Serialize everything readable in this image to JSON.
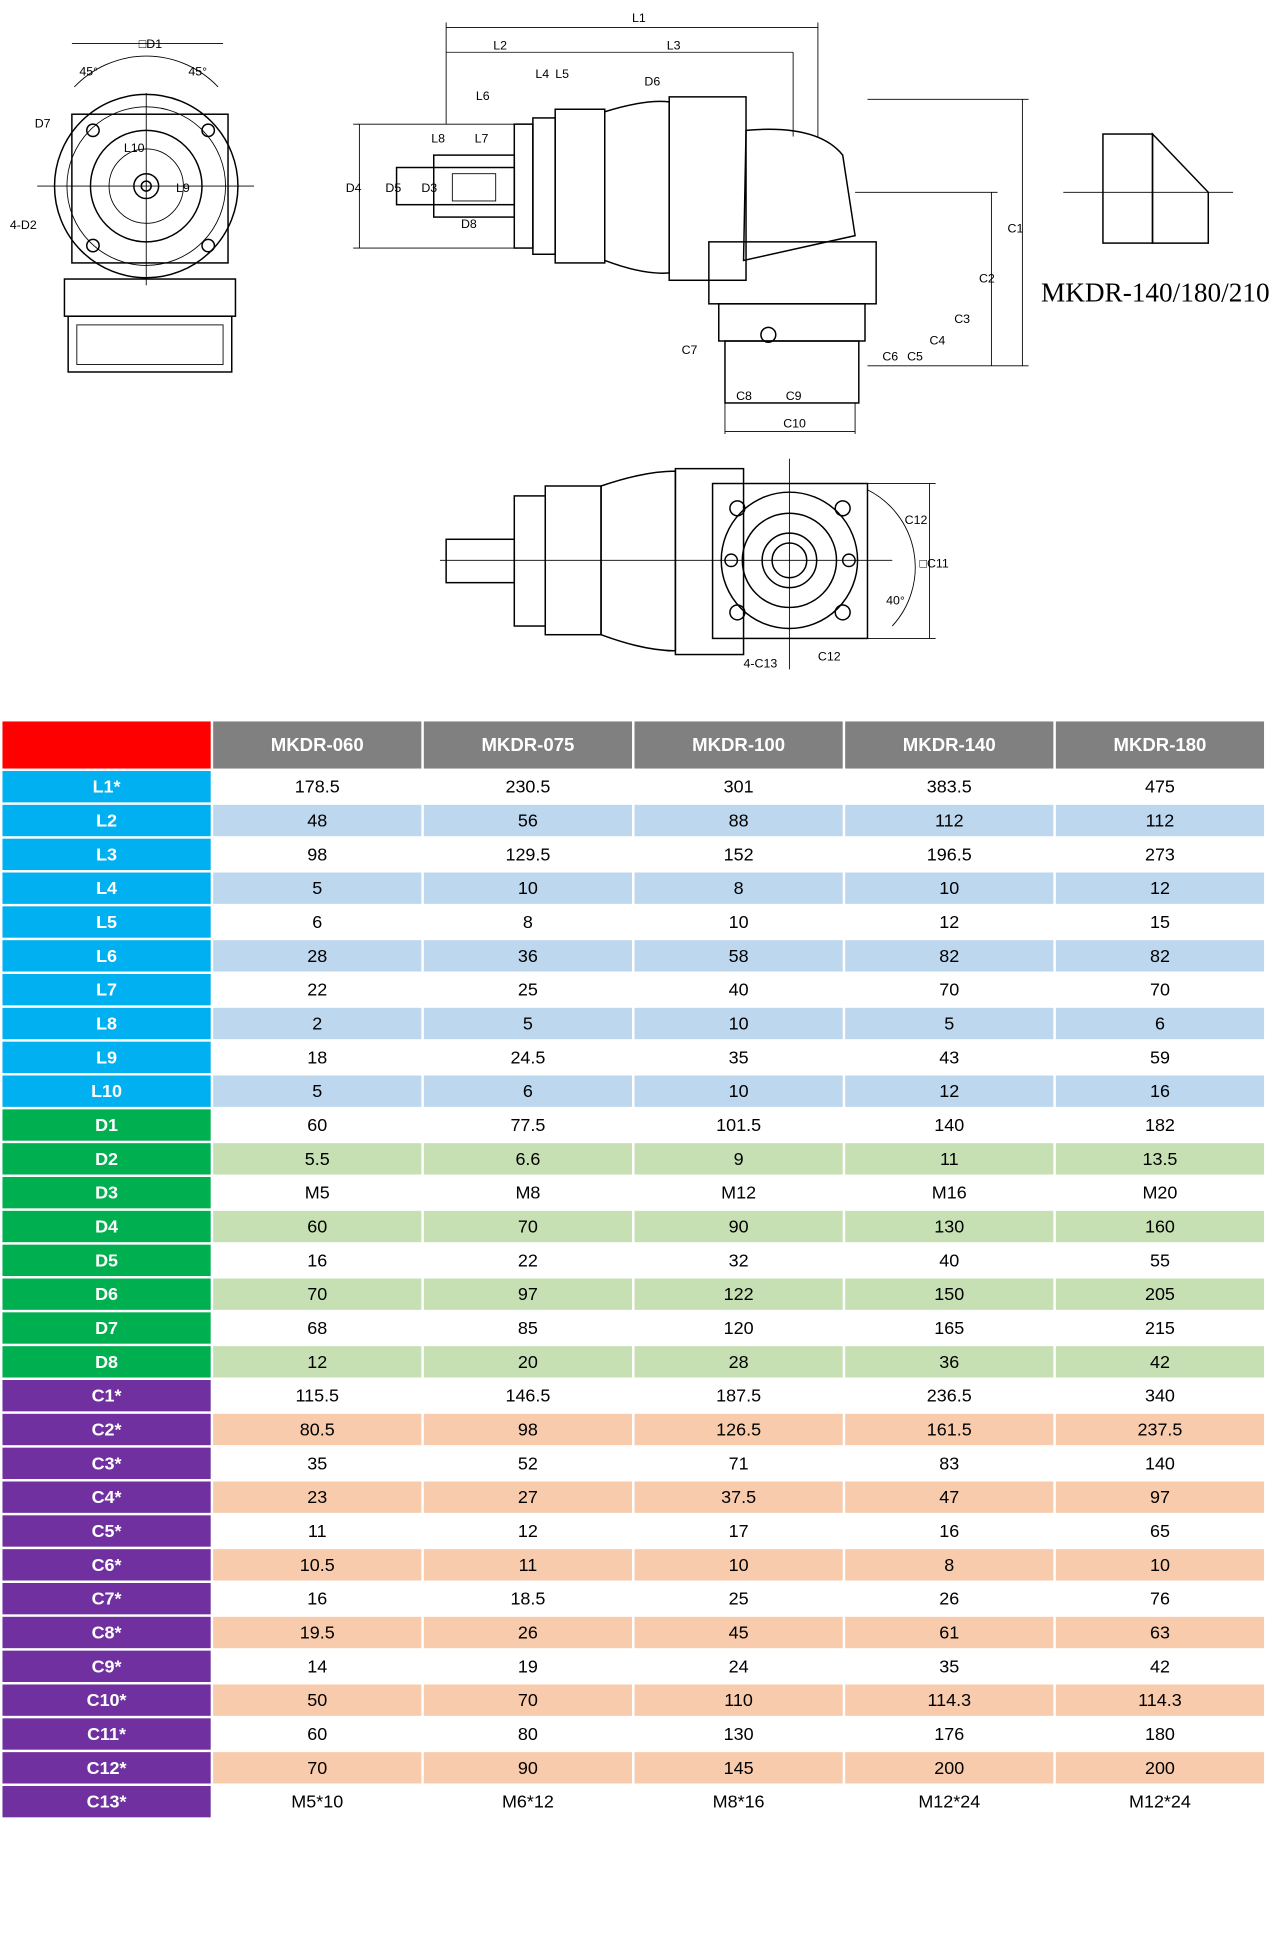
{
  "drawing": {
    "labels": [
      "□D1",
      "45°",
      "45°",
      "D7",
      "L10",
      "L9",
      "4-D2",
      "L1",
      "L2",
      "L3",
      "L4",
      "L5",
      "L6",
      "D6",
      "L8",
      "L7",
      "D4",
      "D5",
      "D3",
      "D8",
      "C1",
      "C2",
      "C3",
      "C4",
      "C5",
      "C6",
      "C7",
      "C8",
      "C9",
      "C10",
      "MKDR-140/180/210",
      "C12",
      "40°",
      "□C11",
      "4-C13",
      "C12"
    ]
  },
  "table": {
    "header": [
      "MKDR-060",
      "MKDR-075",
      "MKDR-100",
      "MKDR-140",
      "MKDR-180"
    ],
    "rows": [
      [
        "L1*",
        "178.5",
        "230.5",
        "301",
        "383.5",
        "475"
      ],
      [
        "L2",
        "48",
        "56",
        "88",
        "112",
        "112"
      ],
      [
        "L3",
        "98",
        "129.5",
        "152",
        "196.5",
        "273"
      ],
      [
        "L4",
        "5",
        "10",
        "8",
        "10",
        "12"
      ],
      [
        "L5",
        "6",
        "8",
        "10",
        "12",
        "15"
      ],
      [
        "L6",
        "28",
        "36",
        "58",
        "82",
        "82"
      ],
      [
        "L7",
        "22",
        "25",
        "40",
        "70",
        "70"
      ],
      [
        "L8",
        "2",
        "5",
        "10",
        "5",
        "6"
      ],
      [
        "L9",
        "18",
        "24.5",
        "35",
        "43",
        "59"
      ],
      [
        "L10",
        "5",
        "6",
        "10",
        "12",
        "16"
      ],
      [
        "D1",
        "60",
        "77.5",
        "101.5",
        "140",
        "182"
      ],
      [
        "D2",
        "5.5",
        "6.6",
        "9",
        "11",
        "13.5"
      ],
      [
        "D3",
        "M5",
        "M8",
        "M12",
        "M16",
        "M20"
      ],
      [
        "D4",
        "60",
        "70",
        "90",
        "130",
        "160"
      ],
      [
        "D5",
        "16",
        "22",
        "32",
        "40",
        "55"
      ],
      [
        "D6",
        "70",
        "97",
        "122",
        "150",
        "205"
      ],
      [
        "D7",
        "68",
        "85",
        "120",
        "165",
        "215"
      ],
      [
        "D8",
        "12",
        "20",
        "28",
        "36",
        "42"
      ],
      [
        "C1*",
        "115.5",
        "146.5",
        "187.5",
        "236.5",
        "340"
      ],
      [
        "C2*",
        "80.5",
        "98",
        "126.5",
        "161.5",
        "237.5"
      ],
      [
        "C3*",
        "35",
        "52",
        "71",
        "83",
        "140"
      ],
      [
        "C4*",
        "23",
        "27",
        "37.5",
        "47",
        "97"
      ],
      [
        "C5*",
        "11",
        "12",
        "17",
        "16",
        "65"
      ],
      [
        "C6*",
        "10.5",
        "11",
        "10",
        "8",
        "10"
      ],
      [
        "C7*",
        "16",
        "18.5",
        "25",
        "26",
        "76"
      ],
      [
        "C8*",
        "19.5",
        "26",
        "45",
        "61",
        "63"
      ],
      [
        "C9*",
        "14",
        "19",
        "24",
        "35",
        "42"
      ],
      [
        "C10*",
        "50",
        "70",
        "110",
        "114.3",
        "114.3"
      ],
      [
        "C11*",
        "60",
        "80",
        "130",
        "176",
        "180"
      ],
      [
        "C12*",
        "70",
        "90",
        "145",
        "200",
        "200"
      ],
      [
        "C13*",
        "M5*10",
        "M6*12",
        "M8*16",
        "M12*24",
        "M12*24"
      ]
    ]
  }
}
